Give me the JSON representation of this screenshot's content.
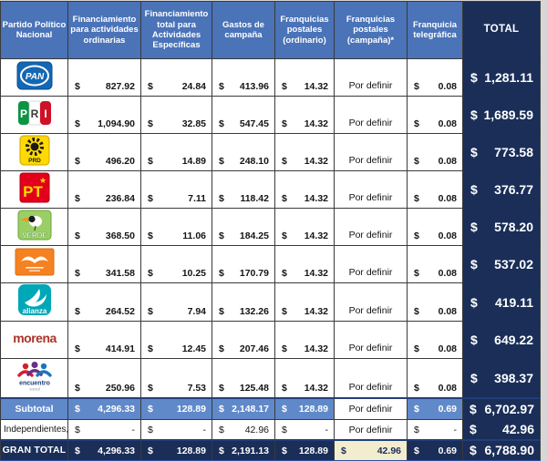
{
  "table": {
    "columns": [
      "Partido Político Nacional",
      "Financiamiento para actividades ordinarias",
      "Financiamiento total para Actividades Específicas",
      "Gastos de campaña",
      "Franquicias postales (ordinario)",
      "Franquicias postales (campaña)*",
      "Franquicia telegráfica",
      "TOTAL"
    ],
    "rows": [
      {
        "id": "pan",
        "kind": "party",
        "logo": "pan-logo",
        "cells": [
          {
            "sign": "$",
            "amount": "827.92"
          },
          {
            "sign": "$",
            "amount": "24.84"
          },
          {
            "sign": "$",
            "amount": "413.96"
          },
          {
            "sign": "$",
            "amount": "14.32"
          },
          {
            "text": "Por definir"
          },
          {
            "sign": "$",
            "amount": "0.08"
          }
        ],
        "total": {
          "sign": "$",
          "amount": "1,281.11"
        }
      },
      {
        "id": "pri",
        "kind": "party",
        "logo": "pri-logo",
        "cells": [
          {
            "sign": "$",
            "amount": "1,094.90"
          },
          {
            "sign": "$",
            "amount": "32.85"
          },
          {
            "sign": "$",
            "amount": "547.45"
          },
          {
            "sign": "$",
            "amount": "14.32"
          },
          {
            "text": "Por definir"
          },
          {
            "sign": "$",
            "amount": "0.08"
          }
        ],
        "total": {
          "sign": "$",
          "amount": "1,689.59"
        }
      },
      {
        "id": "prd",
        "kind": "party",
        "logo": "prd-logo",
        "cells": [
          {
            "sign": "$",
            "amount": "496.20"
          },
          {
            "sign": "$",
            "amount": "14.89"
          },
          {
            "sign": "$",
            "amount": "248.10"
          },
          {
            "sign": "$",
            "amount": "14.32"
          },
          {
            "text": "Por definir"
          },
          {
            "sign": "$",
            "amount": "0.08"
          }
        ],
        "total": {
          "sign": "$",
          "amount": "773.58"
        }
      },
      {
        "id": "pt",
        "kind": "party",
        "logo": "pt-logo",
        "cells": [
          {
            "sign": "$",
            "amount": "236.84"
          },
          {
            "sign": "$",
            "amount": "7.11"
          },
          {
            "sign": "$",
            "amount": "118.42"
          },
          {
            "sign": "$",
            "amount": "14.32"
          },
          {
            "text": "Por definir"
          },
          {
            "sign": "$",
            "amount": "0.08"
          }
        ],
        "total": {
          "sign": "$",
          "amount": "376.77"
        }
      },
      {
        "id": "verde",
        "kind": "party",
        "logo": "verde-logo",
        "cells": [
          {
            "sign": "$",
            "amount": "368.50"
          },
          {
            "sign": "$",
            "amount": "11.06"
          },
          {
            "sign": "$",
            "amount": "184.25"
          },
          {
            "sign": "$",
            "amount": "14.32"
          },
          {
            "text": "Por definir"
          },
          {
            "sign": "$",
            "amount": "0.08"
          }
        ],
        "total": {
          "sign": "$",
          "amount": "578.20"
        }
      },
      {
        "id": "mc",
        "kind": "party",
        "logo": "movimiento-ciudadano-logo",
        "cells": [
          {
            "sign": "$",
            "amount": "341.58"
          },
          {
            "sign": "$",
            "amount": "10.25"
          },
          {
            "sign": "$",
            "amount": "170.79"
          },
          {
            "sign": "$",
            "amount": "14.32"
          },
          {
            "text": "Por definir"
          },
          {
            "sign": "$",
            "amount": "0.08"
          }
        ],
        "total": {
          "sign": "$",
          "amount": "537.02"
        }
      },
      {
        "id": "alianza",
        "kind": "party",
        "logo": "nueva-alianza-logo",
        "cells": [
          {
            "sign": "$",
            "amount": "264.52"
          },
          {
            "sign": "$",
            "amount": "7.94"
          },
          {
            "sign": "$",
            "amount": "132.26"
          },
          {
            "sign": "$",
            "amount": "14.32"
          },
          {
            "text": "Por definir"
          },
          {
            "sign": "$",
            "amount": "0.08"
          }
        ],
        "total": {
          "sign": "$",
          "amount": "419.11"
        }
      },
      {
        "id": "morena",
        "kind": "party",
        "logo": "morena-logo",
        "cells": [
          {
            "sign": "$",
            "amount": "414.91"
          },
          {
            "sign": "$",
            "amount": "12.45"
          },
          {
            "sign": "$",
            "amount": "207.46"
          },
          {
            "sign": "$",
            "amount": "14.32"
          },
          {
            "text": "Por definir"
          },
          {
            "sign": "$",
            "amount": "0.08"
          }
        ],
        "total": {
          "sign": "$",
          "amount": "649.22"
        }
      },
      {
        "id": "es",
        "kind": "party",
        "logo": "encuentro-social-logo",
        "cells": [
          {
            "sign": "$",
            "amount": "250.96"
          },
          {
            "sign": "$",
            "amount": "7.53"
          },
          {
            "sign": "$",
            "amount": "125.48"
          },
          {
            "sign": "$",
            "amount": "14.32"
          },
          {
            "text": "Por definir"
          },
          {
            "sign": "$",
            "amount": "0.08"
          }
        ],
        "total": {
          "sign": "$",
          "amount": "398.37"
        }
      },
      {
        "id": "subtotal",
        "kind": "subtotal",
        "label": "Subtotal",
        "cells": [
          {
            "sign": "$",
            "amount": "4,296.33"
          },
          {
            "sign": "$",
            "amount": "128.89"
          },
          {
            "sign": "$",
            "amount": "2,148.17"
          },
          {
            "sign": "$",
            "amount": "128.89"
          },
          {
            "text": "Por definir"
          },
          {
            "sign": "$",
            "amount": "0.69"
          }
        ],
        "total": {
          "sign": "$",
          "amount": "6,702.97"
        }
      },
      {
        "id": "independientes",
        "kind": "independientes",
        "label": "Independientes,",
        "cells": [
          {
            "sign": "$",
            "amount": "-"
          },
          {
            "sign": "$",
            "amount": "-"
          },
          {
            "sign": "$",
            "amount": "42.96"
          },
          {
            "sign": "$",
            "amount": "-"
          },
          {
            "text": "Por definir"
          },
          {
            "sign": "$",
            "amount": "-"
          }
        ],
        "total": {
          "sign": "$",
          "amount": "42.96"
        }
      },
      {
        "id": "grantotal",
        "kind": "grandtotal",
        "label": "GRAN TOTAL",
        "cells": [
          {
            "sign": "$",
            "amount": "4,296.33"
          },
          {
            "sign": "$",
            "amount": "128.89"
          },
          {
            "sign": "$",
            "amount": "2,191.13"
          },
          {
            "sign": "$",
            "amount": "128.89"
          },
          {
            "sign": "$",
            "amount": "42.96",
            "highlight": true
          },
          {
            "sign": "$",
            "amount": "0.69"
          }
        ],
        "total": {
          "sign": "$",
          "amount": "6,788.90"
        }
      }
    ]
  },
  "colors": {
    "header_blue": "#4a73b8",
    "navy": "#1a2e58",
    "subtotal_blue": "#6089ca",
    "cream": "#f2edcf"
  }
}
